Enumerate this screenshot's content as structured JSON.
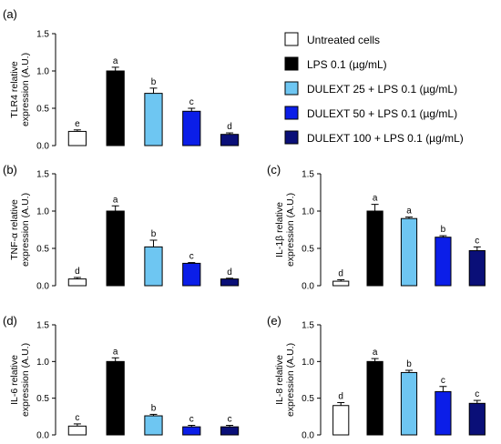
{
  "colors": {
    "untreated": "#ffffff",
    "lps": "#000000",
    "dulext25": "#6ec6f2",
    "dulext50": "#0b1ee8",
    "dulext100": "#0a0f78"
  },
  "legend": [
    {
      "label": "Untreated cells",
      "color_key": "untreated"
    },
    {
      "label": "LPS 0.1 (µg/mL)",
      "color_key": "lps"
    },
    {
      "label": "DULEXT 25 + LPS 0.1 (µg/mL)",
      "color_key": "dulext25"
    },
    {
      "label": "DULEXT 50 + LPS  0.1 (µg/mL)",
      "color_key": "dulext50"
    },
    {
      "label": "DULEXT 100 + LPS 0.1 (µg/mL)",
      "color_key": "dulext100"
    }
  ],
  "chart_data": [
    {
      "panel": "(a)",
      "type": "bar",
      "ylabel_lines": [
        "TLR4 relative",
        "expression (A.U.)"
      ],
      "ylim": [
        0,
        1.5
      ],
      "yticks": [
        "0.0",
        "0.5",
        "1.0",
        "1.5"
      ],
      "values": [
        0.19,
        1.0,
        0.7,
        0.46,
        0.15
      ],
      "errors": [
        0.02,
        0.05,
        0.07,
        0.04,
        0.02
      ],
      "significance": [
        "e",
        "a",
        "b",
        "c",
        "d"
      ]
    },
    {
      "panel": "(b)",
      "type": "bar",
      "ylabel_lines": [
        "TNF-α relative",
        "expression (A.U.)"
      ],
      "ylim": [
        0,
        1.5
      ],
      "yticks": [
        "0.0",
        "0.5",
        "1.0",
        "1.5"
      ],
      "values": [
        0.09,
        1.0,
        0.52,
        0.3,
        0.09
      ],
      "errors": [
        0.02,
        0.07,
        0.09,
        0.01,
        0.01
      ],
      "significance": [
        "d",
        "a",
        "b",
        "c",
        "d"
      ]
    },
    {
      "panel": "(c)",
      "type": "bar",
      "ylabel_lines": [
        "IL-1β relative",
        "expression (A.U.)"
      ],
      "ylim": [
        0,
        1.5
      ],
      "yticks": [
        "0.0",
        "0.5",
        "1.0",
        "1.5"
      ],
      "values": [
        0.06,
        1.0,
        0.9,
        0.65,
        0.47
      ],
      "errors": [
        0.02,
        0.09,
        0.02,
        0.02,
        0.05
      ],
      "significance": [
        "d",
        "a",
        "a",
        "b",
        "c"
      ]
    },
    {
      "panel": "(d)",
      "type": "bar",
      "ylabel_lines": [
        "IL-6 relative",
        "expression (A.U.)"
      ],
      "ylim": [
        0,
        1.5
      ],
      "yticks": [
        "0.0",
        "0.5",
        "1.0",
        "1.5"
      ],
      "values": [
        0.12,
        1.0,
        0.26,
        0.11,
        0.11
      ],
      "errors": [
        0.03,
        0.05,
        0.02,
        0.02,
        0.02
      ],
      "significance": [
        "c",
        "a",
        "b",
        "c",
        "c"
      ]
    },
    {
      "panel": "(e)",
      "type": "bar",
      "ylabel_lines": [
        "IL-8 relative",
        "expression (A.U.)"
      ],
      "ylim": [
        0,
        1.5
      ],
      "yticks": [
        "0.0",
        "0.5",
        "1.0",
        "1.5"
      ],
      "values": [
        0.4,
        1.0,
        0.85,
        0.59,
        0.43
      ],
      "errors": [
        0.04,
        0.04,
        0.03,
        0.07,
        0.04
      ],
      "significance": [
        "d",
        "a",
        "b",
        "c",
        "c"
      ]
    }
  ]
}
